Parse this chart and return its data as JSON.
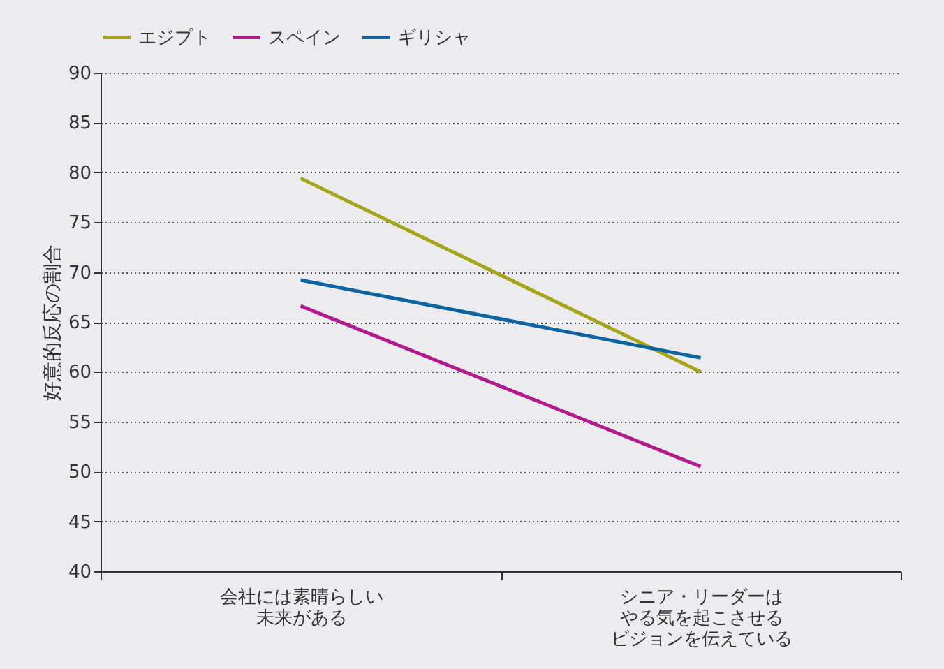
{
  "chart_data": {
    "type": "line",
    "ylabel": "好意的反応の割合",
    "categories": [
      "会社には素晴らしい未来がある",
      "シニア・リーダーはやる気を起こさせるビジョンを伝えている"
    ],
    "series": [
      {
        "name": "エジプト",
        "color": "#a5a51a",
        "values": [
          79.4,
          60
        ]
      },
      {
        "name": "スペイン",
        "color": "#b01c8c",
        "values": [
          66.6,
          50.5
        ]
      },
      {
        "name": "ギリシャ",
        "color": "#0d64a0",
        "values": [
          69.2,
          61.4
        ]
      }
    ],
    "ylim": [
      40,
      90
    ],
    "yticks": [
      40,
      45,
      50,
      55,
      60,
      65,
      70,
      75,
      80,
      85,
      90
    ],
    "grid": "y",
    "legend": "top",
    "marker": "none",
    "line_style": "solid"
  }
}
